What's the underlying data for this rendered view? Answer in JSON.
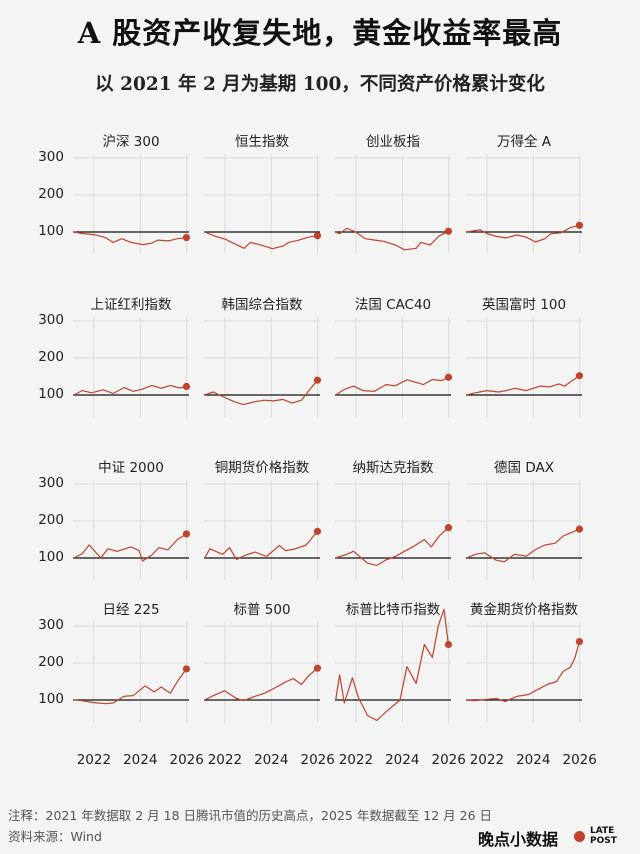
{
  "title": "A 股资产收复失地，黄金收益率最高",
  "subtitle": "以 2021 年 2 月为基期 100，不同资产价格累计变化",
  "notes": {
    "line1": "注释：2021 年数据取 2 月 18 日腾讯市值的历史高点，2025 年数据截至 12 月 26 日",
    "line2": "资料来源：Wind"
  },
  "brand": {
    "name": "晚点小数据",
    "logo_line1": "LATE",
    "logo_line2": "POST"
  },
  "colors": {
    "line": "#c0432b",
    "baseline": "#111111",
    "grid": "#dcdcdc",
    "background": "#f4f4f4"
  },
  "chart_data": {
    "type": "line",
    "layout": "small-multiples-4x4",
    "baseline": 100,
    "y_ticks": [
      "300",
      "200",
      "100"
    ],
    "x_ticks": [
      "2022",
      "2024",
      "2026"
    ],
    "ylim": [
      40,
      310
    ],
    "xlim": [
      2021.1,
      2026.1
    ],
    "panels": [
      {
        "name": "沪深 300",
        "x": [
          2021.13,
          2021.5,
          2022.0,
          2022.5,
          2022.83,
          2023.2,
          2023.6,
          2024.1,
          2024.5,
          2024.75,
          2025.2,
          2025.6,
          2025.99
        ],
        "values": [
          100,
          96,
          93,
          85,
          72,
          82,
          72,
          66,
          70,
          78,
          76,
          82,
          85
        ]
      },
      {
        "name": "恒生指数",
        "x": [
          2021.13,
          2021.6,
          2022.0,
          2022.3,
          2022.83,
          2023.1,
          2023.6,
          2024.05,
          2024.5,
          2024.75,
          2025.2,
          2025.6,
          2025.99
        ],
        "values": [
          100,
          88,
          81,
          72,
          56,
          72,
          64,
          55,
          62,
          72,
          78,
          86,
          90
        ]
      },
      {
        "name": "创业板指",
        "x": [
          2021.13,
          2021.3,
          2021.6,
          2022.0,
          2022.4,
          2022.83,
          2023.2,
          2023.7,
          2024.1,
          2024.6,
          2024.8,
          2025.2,
          2025.6,
          2025.99
        ],
        "values": [
          100,
          95,
          110,
          100,
          82,
          78,
          75,
          65,
          52,
          56,
          72,
          65,
          90,
          102
        ]
      },
      {
        "name": "万得全 A",
        "x": [
          2021.13,
          2021.7,
          2022.0,
          2022.4,
          2022.83,
          2023.3,
          2023.7,
          2024.1,
          2024.5,
          2024.75,
          2025.2,
          2025.6,
          2025.99
        ],
        "values": [
          100,
          106,
          96,
          88,
          84,
          92,
          86,
          73,
          82,
          95,
          98,
          112,
          118
        ]
      },
      {
        "name": "上证红利指数",
        "x": [
          2021.13,
          2021.5,
          2021.9,
          2022.4,
          2022.83,
          2023.3,
          2023.7,
          2024.1,
          2024.5,
          2024.9,
          2025.3,
          2025.7,
          2025.99
        ],
        "values": [
          100,
          112,
          106,
          114,
          104,
          120,
          110,
          116,
          126,
          118,
          126,
          119,
          123
        ]
      },
      {
        "name": "韩国综合指数",
        "x": [
          2021.13,
          2021.5,
          2021.9,
          2022.4,
          2022.8,
          2023.3,
          2023.7,
          2024.1,
          2024.5,
          2024.9,
          2025.3,
          2025.6,
          2025.99
        ],
        "values": [
          100,
          108,
          96,
          82,
          74,
          82,
          86,
          84,
          88,
          78,
          86,
          110,
          140
        ]
      },
      {
        "name": "法国 CAC40",
        "x": [
          2021.13,
          2021.5,
          2021.9,
          2022.3,
          2022.8,
          2023.3,
          2023.7,
          2024.2,
          2024.6,
          2024.9,
          2025.3,
          2025.7,
          2025.99
        ],
        "values": [
          100,
          115,
          124,
          112,
          110,
          128,
          125,
          141,
          134,
          128,
          142,
          139,
          148
        ]
      },
      {
        "name": "英国富时 100",
        "x": [
          2021.13,
          2021.5,
          2022.0,
          2022.5,
          2022.83,
          2023.2,
          2023.7,
          2024.3,
          2024.7,
          2025.1,
          2025.35,
          2025.7,
          2025.99
        ],
        "values": [
          100,
          106,
          112,
          108,
          112,
          118,
          112,
          124,
          122,
          130,
          124,
          140,
          152
        ]
      },
      {
        "name": "中证 2000",
        "x": [
          2021.13,
          2021.5,
          2021.8,
          2022.3,
          2022.6,
          2023.0,
          2023.6,
          2023.95,
          2024.1,
          2024.5,
          2024.8,
          2025.2,
          2025.6,
          2025.99
        ],
        "values": [
          100,
          112,
          135,
          100,
          125,
          118,
          130,
          120,
          92,
          108,
          128,
          122,
          150,
          165
        ]
      },
      {
        "name": "铜期货价格指数",
        "x": [
          2021.13,
          2021.35,
          2021.9,
          2022.2,
          2022.5,
          2022.9,
          2023.3,
          2023.8,
          2024.35,
          2024.6,
          2025.0,
          2025.5,
          2025.99
        ],
        "values": [
          100,
          125,
          110,
          128,
          96,
          108,
          116,
          104,
          134,
          120,
          124,
          135,
          172
        ]
      },
      {
        "name": "纳斯达克指数",
        "x": [
          2021.13,
          2021.6,
          2021.9,
          2022.5,
          2022.9,
          2023.3,
          2023.7,
          2024.1,
          2024.5,
          2024.95,
          2025.25,
          2025.6,
          2025.99
        ],
        "values": [
          100,
          110,
          118,
          86,
          80,
          95,
          104,
          118,
          132,
          150,
          130,
          160,
          182
        ]
      },
      {
        "name": "德国 DAX",
        "x": [
          2021.13,
          2021.5,
          2021.9,
          2022.4,
          2022.75,
          2023.2,
          2023.7,
          2024.1,
          2024.5,
          2024.95,
          2025.3,
          2025.7,
          2025.99
        ],
        "values": [
          100,
          110,
          114,
          94,
          90,
          110,
          105,
          123,
          135,
          140,
          160,
          170,
          178
        ]
      },
      {
        "name": "日经 225",
        "x": [
          2021.13,
          2021.5,
          2022.0,
          2022.5,
          2022.83,
          2023.3,
          2023.7,
          2024.2,
          2024.6,
          2024.9,
          2025.3,
          2025.6,
          2025.99
        ],
        "values": [
          100,
          98,
          93,
          90,
          92,
          110,
          112,
          138,
          122,
          135,
          118,
          150,
          184
        ]
      },
      {
        "name": "标普 500",
        "x": [
          2021.13,
          2021.5,
          2021.99,
          2022.5,
          2022.8,
          2023.3,
          2023.7,
          2024.2,
          2024.6,
          2024.95,
          2025.3,
          2025.6,
          2025.99
        ],
        "values": [
          100,
          112,
          125,
          104,
          98,
          110,
          118,
          134,
          148,
          158,
          142,
          165,
          186
        ]
      },
      {
        "name": "标普比特币指数",
        "x": [
          2021.13,
          2021.3,
          2021.5,
          2021.85,
          2022.1,
          2022.5,
          2022.9,
          2023.3,
          2023.9,
          2024.2,
          2024.6,
          2024.95,
          2025.3,
          2025.55,
          2025.8,
          2025.99
        ],
        "values": [
          100,
          168,
          92,
          160,
          108,
          58,
          45,
          68,
          100,
          190,
          145,
          250,
          215,
          300,
          345,
          250
        ]
      },
      {
        "name": "黄金期货价格指数",
        "x": [
          2021.13,
          2021.5,
          2022.0,
          2022.4,
          2022.8,
          2023.3,
          2023.8,
          2024.3,
          2024.6,
          2025.0,
          2025.3,
          2025.6,
          2025.8,
          2025.99
        ],
        "values": [
          100,
          98,
          102,
          104,
          96,
          110,
          115,
          132,
          142,
          150,
          178,
          188,
          215,
          258
        ]
      }
    ]
  }
}
